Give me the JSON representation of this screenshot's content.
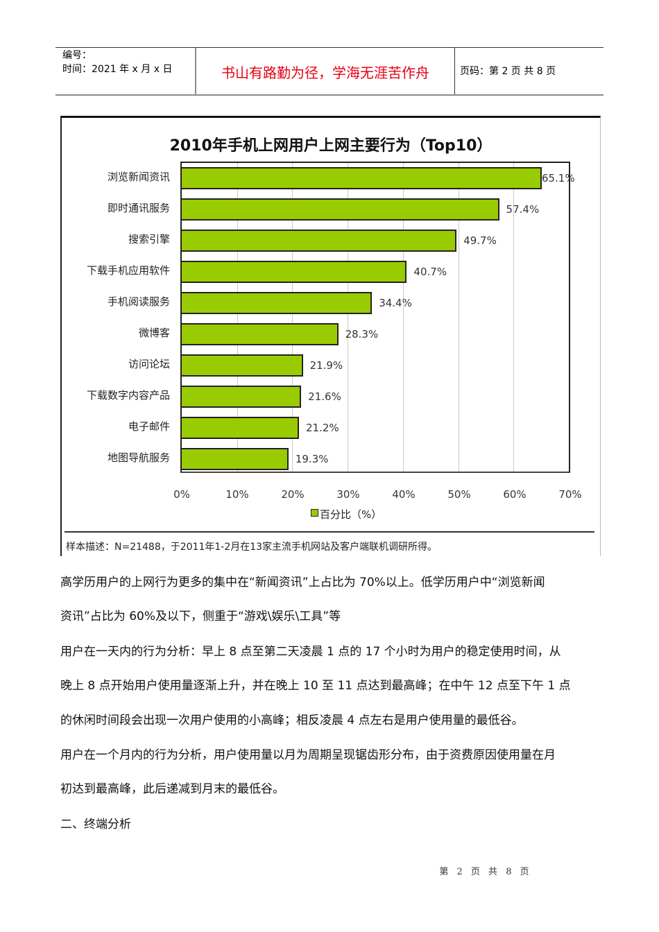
{
  "header": {
    "number_label": "编号：",
    "date_label": "时间：2021 年 x 月 x 日",
    "motto": "书山有路勤为径，学海无涯苦作舟",
    "page_label": "页码：第 2 页  共 8 页"
  },
  "chart_data": {
    "type": "bar",
    "orientation": "horizontal",
    "title": "2010年手机上网用户上网主要行为（Top10）",
    "categories": [
      "浏览新闻资讯",
      "即时通讯服务",
      "搜索引擎",
      "下载手机应用软件",
      "手机阅读服务",
      "微博客",
      "访问论坛",
      "下载数字内容产品",
      "电子邮件",
      "地图导航服务"
    ],
    "values": [
      65.1,
      57.4,
      49.7,
      40.7,
      34.4,
      28.3,
      21.9,
      21.6,
      21.2,
      19.3
    ],
    "value_labels": [
      "65.1%",
      "57.4%",
      "49.7%",
      "40.7%",
      "34.4%",
      "28.3%",
      "21.9%",
      "21.6%",
      "21.2%",
      "19.3%"
    ],
    "series": [
      {
        "name": "百分比（%）",
        "values": [
          65.1,
          57.4,
          49.7,
          40.7,
          34.4,
          28.3,
          21.9,
          21.6,
          21.2,
          19.3
        ],
        "color": "#99cc00"
      }
    ],
    "xlabel": "",
    "ylabel": "",
    "xlim": [
      0,
      70
    ],
    "x_ticks": [
      "0%",
      "10%",
      "20%",
      "30%",
      "40%",
      "50%",
      "60%",
      "70%"
    ],
    "legend": {
      "position": "bottom",
      "entries": [
        "百分比（%）"
      ]
    },
    "grid": true,
    "note": "样本描述：N=21488，于2011年1-2月在13家主流手机网站及客户端联机调研所得。"
  },
  "body": {
    "paragraphs": [
      "高学历用户的上网行为更多的集中在“新闻资讯”上占比为 70%以上。低学历用户中“浏览新闻",
      "资讯”占比为 60%及以下，侧重于“游戏\\娱乐\\工具”等",
      "用户在一天内的行为分析：早上 8 点至第二天凌晨 1 点的 17 个小时为用户的稳定使用时间，从",
      "晚上 8 点开始用户使用量逐渐上升，并在晚上 10 至 11 点达到最高峰；在中午 12 点至下午 1 点",
      "的休闲时间段会出现一次用户使用的小高峰；相反凌晨 4 点左右是用户使用量的最低谷。",
      "用户在一个月内的行为分析，用户使用量以月为周期呈现锯齿形分布，由于资费原因使用量在月",
      "初达到最高峰，此后递减到月末的最低谷。",
      "二、终端分析"
    ]
  },
  "footer": {
    "page_text": "第 2 页 共 8 页"
  }
}
